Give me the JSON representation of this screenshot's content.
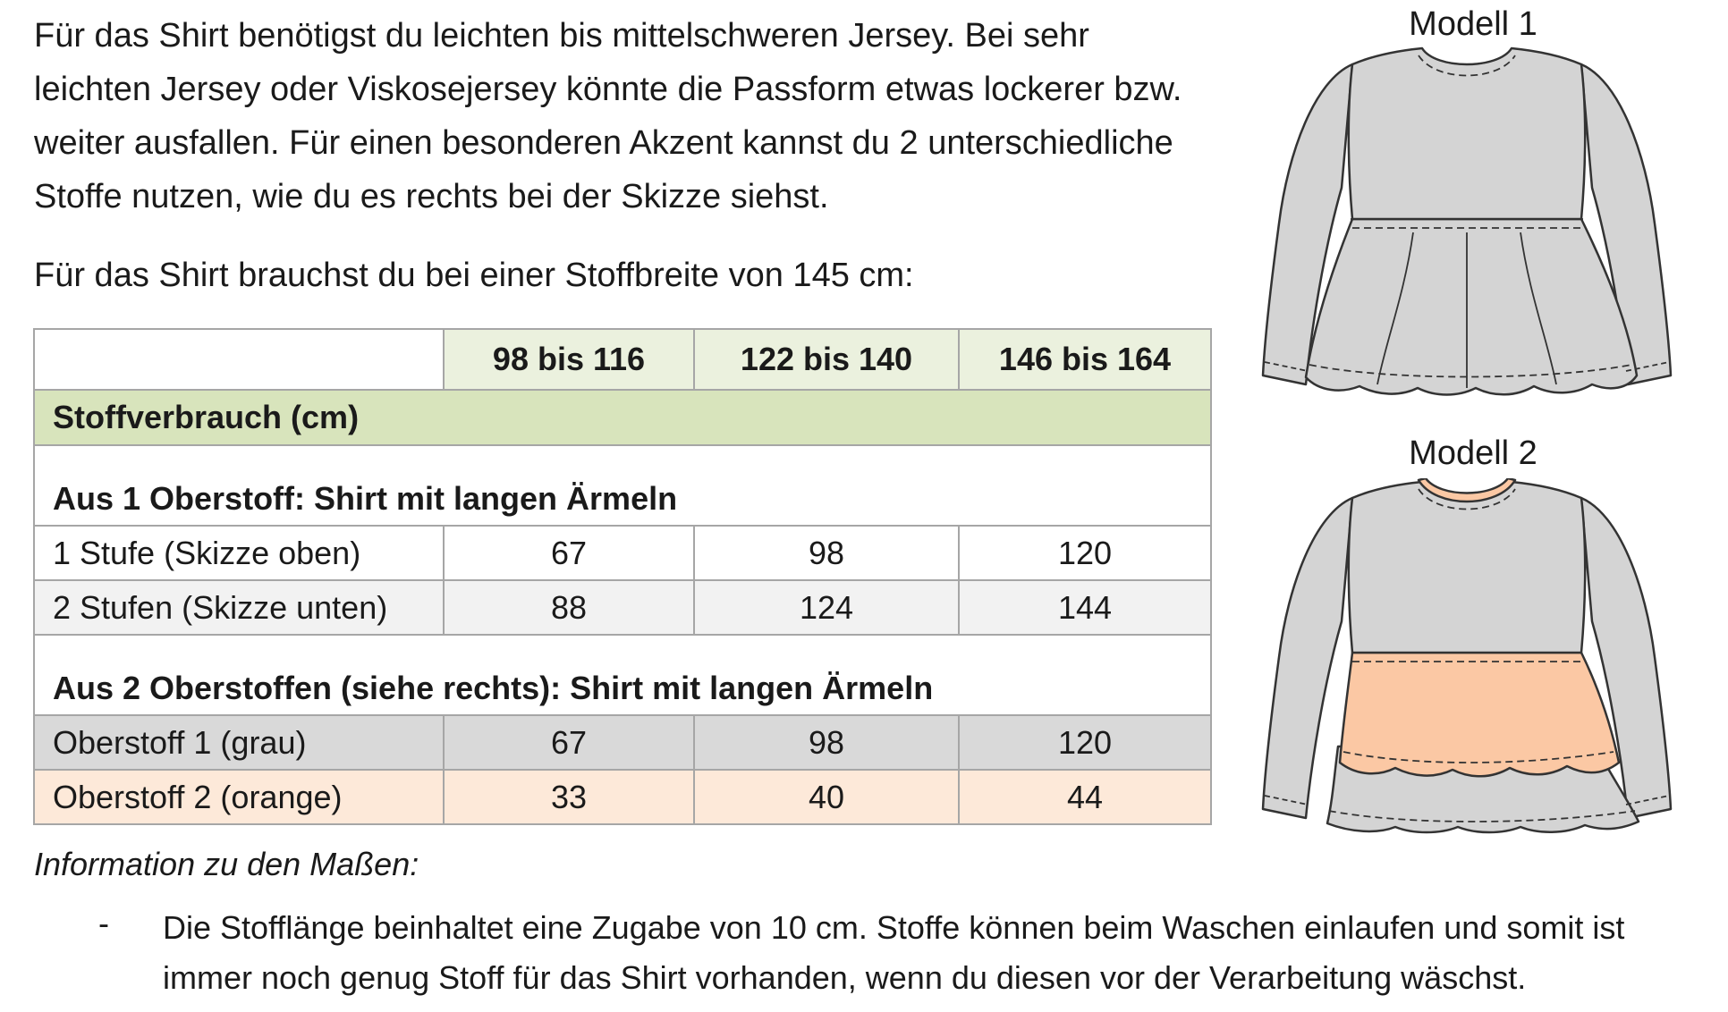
{
  "intro": "Für das Shirt benötigst du leichten bis mittelschweren Jersey. Bei sehr leichten Jersey oder Viskosejersey könnte die Passform etwas lockerer bzw. weiter ausfallen. Für einen besonderen Akzent kannst du 2 unterschiedliche Stoffe nutzen, wie du es rechts bei der Skizze siehst.",
  "lead": "Für das Shirt brauchst du bei einer Stoffbreite von 145 cm:",
  "table": {
    "header": [
      "",
      "98 bis 116",
      "122 bis 140",
      "146 bis 164"
    ],
    "section": "Stoffverbrauch (cm)",
    "group1": {
      "title": "Aus 1 Oberstoff: Shirt mit langen Ärmeln",
      "rows": [
        {
          "label": "1 Stufe (Skizze oben)",
          "values": [
            "67",
            "98",
            "120"
          ]
        },
        {
          "label": "2 Stufen (Skizze unten)",
          "values": [
            "88",
            "124",
            "144"
          ]
        }
      ]
    },
    "group2": {
      "title": "Aus 2 Oberstoffen (siehe rechts): Shirt mit langen Ärmeln",
      "rows": [
        {
          "label": "Oberstoff 1 (grau)",
          "values": [
            "67",
            "98",
            "120"
          ]
        },
        {
          "label": "Oberstoff 2 (orange)",
          "values": [
            "33",
            "40",
            "44"
          ]
        }
      ]
    }
  },
  "info": {
    "title": "Information zu den Maßen:",
    "bullet": "-",
    "note": "Die Stofflänge beinhaltet eine Zugabe von 10 cm. Stoffe können beim Waschen einlaufen und somit ist immer noch genug Stoff für das Shirt vorhanden, wenn du diesen vor der Verarbeitung wäschst."
  },
  "models": [
    {
      "title": "Modell 1"
    },
    {
      "title": "Modell 2"
    }
  ],
  "colors": {
    "shirt_grey": "#d4d4d4",
    "accent_orange": "#fbc8a4",
    "header_green": "#ebf1de",
    "section_green": "#d8e4bc",
    "row_grey": "#d9d9d9",
    "row_orange": "#fde9d9"
  }
}
